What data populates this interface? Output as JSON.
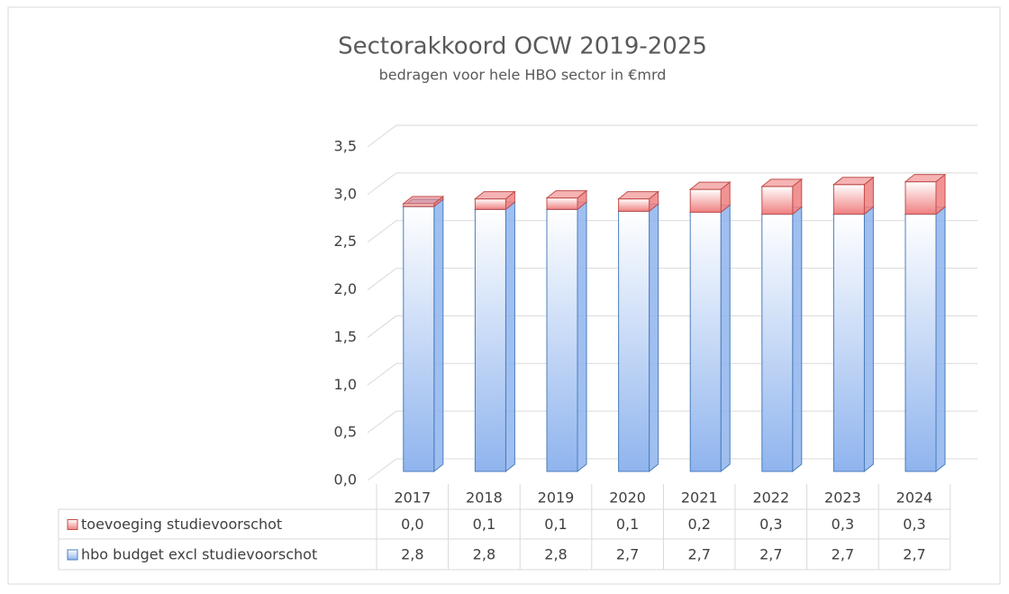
{
  "chart_data": {
    "type": "bar3d_stacked",
    "title": "Sectorakkoord  OCW 2019-2025",
    "subtitle": "bedragen voor hele HBO sector in €mrd",
    "categories": [
      "2017",
      "2018",
      "2019",
      "2020",
      "2021",
      "2022",
      "2023",
      "2024"
    ],
    "series": [
      {
        "name": "toevoeging studievoorschot",
        "color": "#f08080",
        "stroke": "#c0504d",
        "values": [
          0.03,
          0.11,
          0.12,
          0.13,
          0.24,
          0.29,
          0.31,
          0.34
        ],
        "value_labels": [
          "0,0",
          "0,1",
          "0,1",
          "0,1",
          "0,2",
          "0,3",
          "0,3",
          "0,3"
        ]
      },
      {
        "name": "hbo budget excl studievoorschot",
        "color": "#8fb4ee",
        "stroke": "#4a7ebb",
        "values": [
          2.78,
          2.75,
          2.75,
          2.73,
          2.72,
          2.7,
          2.7,
          2.7
        ],
        "value_labels": [
          "2,8",
          "2,8",
          "2,8",
          "2,7",
          "2,7",
          "2,7",
          "2,7",
          "2,7"
        ]
      }
    ],
    "ylim": [
      0,
      3.5
    ],
    "yticks": [
      {
        "value": 0,
        "label": "0,0"
      },
      {
        "value": 0.5,
        "label": "0,5"
      },
      {
        "value": 1,
        "label": "1,0"
      },
      {
        "value": 1.5,
        "label": "1,5"
      },
      {
        "value": 2,
        "label": "2,0"
      },
      {
        "value": 2.5,
        "label": "2,5"
      },
      {
        "value": 3,
        "label": "3,0"
      },
      {
        "value": 3.5,
        "label": "3,5"
      }
    ],
    "grid": true
  }
}
